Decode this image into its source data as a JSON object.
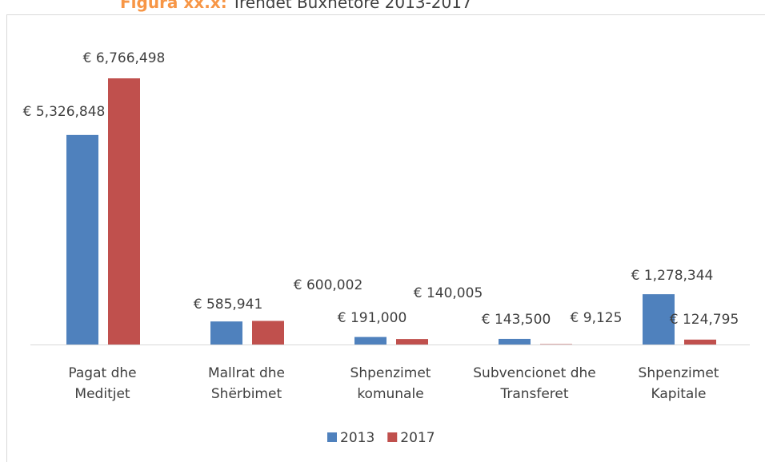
{
  "chart_data": {
    "type": "bar",
    "title_prefix": "Figura xx.x:",
    "title": "Trendet Buxhetore 2013-2017",
    "categories": [
      [
        "Pagat dhe",
        "Meditjet"
      ],
      [
        "Mallrat dhe",
        "Shërbimet"
      ],
      [
        "Shpenzimet",
        "komunale"
      ],
      [
        "Subvencionet dhe",
        "Transferet"
      ],
      [
        "Shpenzimet",
        "Kapitale"
      ]
    ],
    "series": [
      {
        "name": "2013",
        "color": "#4f81bd",
        "values": [
          5326848,
          585941,
          191000,
          143500,
          1278344
        ],
        "value_labels": [
          "€ 5,326,848",
          "€ 585,941",
          "€ 191,000",
          "€ 143,500",
          "€ 1,278,344"
        ]
      },
      {
        "name": "2017",
        "color": "#c0504d",
        "values": [
          6766498,
          600002,
          140005,
          9125,
          124795
        ],
        "value_labels": [
          "€ 6,766,498",
          "€ 600,002",
          "€ 140,005",
          "€ 9,125",
          "€ 124,795"
        ]
      }
    ],
    "legend": "bottom"
  }
}
